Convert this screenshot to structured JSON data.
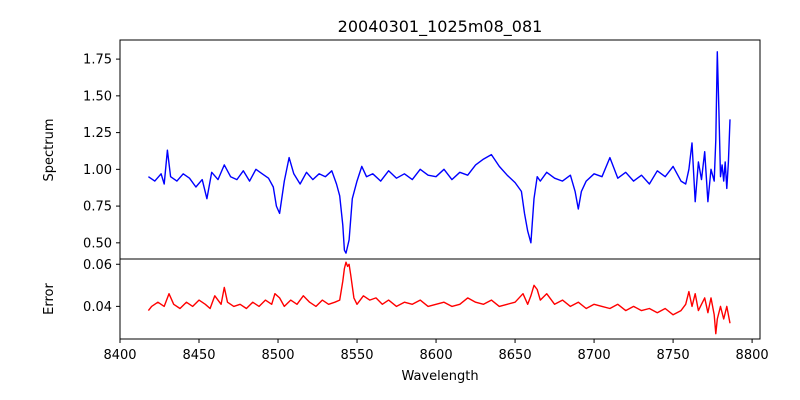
{
  "chart_data": [
    {
      "type": "line",
      "panel": "top",
      "title": "20040301_1025m08_081",
      "xlabel": "",
      "ylabel": "Spectrum",
      "xlim": [
        8400,
        8805
      ],
      "ylim": [
        0.39,
        1.88
      ],
      "xticks": [
        8400,
        8450,
        8500,
        8550,
        8600,
        8650,
        8700,
        8750,
        8800
      ],
      "yticks": [
        0.5,
        0.75,
        1.0,
        1.25,
        1.5,
        1.75
      ],
      "ytick_labels": [
        "0.50",
        "0.75",
        "1.00",
        "1.25",
        "1.50",
        "1.75"
      ],
      "series": [
        {
          "color": "#0000ff",
          "x": [
            8418,
            8422,
            8426,
            8428,
            8430,
            8432,
            8436,
            8440,
            8444,
            8448,
            8452,
            8455,
            8458,
            8462,
            8466,
            8470,
            8474,
            8478,
            8482,
            8486,
            8490,
            8494,
            8497,
            8499,
            8501,
            8504,
            8507,
            8510,
            8514,
            8518,
            8522,
            8526,
            8530,
            8534,
            8537,
            8539,
            8541,
            8542,
            8543,
            8545,
            8547,
            8550,
            8553,
            8556,
            8560,
            8565,
            8570,
            8575,
            8580,
            8585,
            8590,
            8595,
            8600,
            8605,
            8610,
            8615,
            8620,
            8625,
            8630,
            8635,
            8640,
            8645,
            8650,
            8654,
            8656,
            8658,
            8660,
            8662,
            8664,
            8666,
            8670,
            8675,
            8680,
            8685,
            8688,
            8690,
            8692,
            8695,
            8700,
            8705,
            8710,
            8715,
            8720,
            8725,
            8730,
            8735,
            8740,
            8745,
            8750,
            8755,
            8758,
            8760,
            8762,
            8764,
            8766,
            8768,
            8770,
            8772,
            8774,
            8776,
            8777,
            8778,
            8779,
            8780,
            8781,
            8782,
            8783,
            8784,
            8785,
            8786
          ],
          "y": [
            0.95,
            0.92,
            0.97,
            0.9,
            1.13,
            0.95,
            0.92,
            0.97,
            0.94,
            0.88,
            0.93,
            0.8,
            0.98,
            0.93,
            1.03,
            0.95,
            0.93,
            0.99,
            0.92,
            1.0,
            0.97,
            0.94,
            0.88,
            0.75,
            0.7,
            0.92,
            1.08,
            0.97,
            0.9,
            0.98,
            0.93,
            0.97,
            0.95,
            0.99,
            0.9,
            0.82,
            0.62,
            0.45,
            0.43,
            0.52,
            0.8,
            0.92,
            1.02,
            0.95,
            0.97,
            0.92,
            0.99,
            0.94,
            0.97,
            0.93,
            1.0,
            0.96,
            0.95,
            1.0,
            0.93,
            0.98,
            0.96,
            1.03,
            1.07,
            1.1,
            1.02,
            0.96,
            0.91,
            0.85,
            0.7,
            0.58,
            0.5,
            0.8,
            0.95,
            0.92,
            0.98,
            0.94,
            0.92,
            0.96,
            0.85,
            0.73,
            0.85,
            0.92,
            0.97,
            0.95,
            1.08,
            0.94,
            0.98,
            0.92,
            0.96,
            0.9,
            0.99,
            0.95,
            1.02,
            0.92,
            0.9,
            1.0,
            1.18,
            0.78,
            1.05,
            0.93,
            1.12,
            0.78,
            1.0,
            0.92,
            1.2,
            1.8,
            1.4,
            0.95,
            1.03,
            0.92,
            1.05,
            0.87,
            1.05,
            1.34
          ]
        }
      ]
    },
    {
      "type": "line",
      "panel": "bottom",
      "title": "",
      "xlabel": "Wavelength",
      "ylabel": "Error",
      "xlim": [
        8400,
        8805
      ],
      "ylim": [
        0.0245,
        0.0625
      ],
      "xticks": [
        8400,
        8450,
        8500,
        8550,
        8600,
        8650,
        8700,
        8750,
        8800
      ],
      "yticks": [
        0.04,
        0.06
      ],
      "ytick_labels": [
        "0.04",
        "0.06"
      ],
      "series": [
        {
          "color": "#ff0000",
          "x": [
            8418,
            8420,
            8424,
            8428,
            8431,
            8434,
            8438,
            8442,
            8446,
            8450,
            8454,
            8457,
            8460,
            8464,
            8466,
            8468,
            8472,
            8476,
            8480,
            8484,
            8488,
            8492,
            8496,
            8498,
            8501,
            8504,
            8508,
            8512,
            8516,
            8520,
            8524,
            8528,
            8532,
            8536,
            8539,
            8541,
            8542,
            8543,
            8544,
            8545,
            8546,
            8548,
            8550,
            8554,
            8558,
            8562,
            8566,
            8570,
            8575,
            8580,
            8585,
            8590,
            8595,
            8600,
            8605,
            8610,
            8615,
            8620,
            8625,
            8630,
            8635,
            8640,
            8645,
            8650,
            8655,
            8658,
            8660,
            8662,
            8664,
            8666,
            8670,
            8675,
            8680,
            8685,
            8690,
            8695,
            8700,
            8705,
            8710,
            8715,
            8720,
            8725,
            8730,
            8735,
            8740,
            8745,
            8750,
            8755,
            8758,
            8760,
            8762,
            8764,
            8766,
            8768,
            8770,
            8772,
            8774,
            8776,
            8777,
            8778,
            8780,
            8782,
            8784,
            8786
          ],
          "y": [
            0.038,
            0.04,
            0.042,
            0.04,
            0.046,
            0.041,
            0.039,
            0.042,
            0.04,
            0.043,
            0.041,
            0.039,
            0.045,
            0.041,
            0.049,
            0.042,
            0.04,
            0.041,
            0.039,
            0.042,
            0.04,
            0.043,
            0.041,
            0.046,
            0.044,
            0.04,
            0.043,
            0.041,
            0.045,
            0.042,
            0.04,
            0.043,
            0.041,
            0.042,
            0.043,
            0.052,
            0.058,
            0.061,
            0.059,
            0.06,
            0.055,
            0.044,
            0.041,
            0.045,
            0.043,
            0.044,
            0.041,
            0.043,
            0.04,
            0.042,
            0.041,
            0.043,
            0.04,
            0.041,
            0.042,
            0.04,
            0.041,
            0.044,
            0.042,
            0.041,
            0.043,
            0.04,
            0.041,
            0.042,
            0.046,
            0.041,
            0.045,
            0.05,
            0.048,
            0.043,
            0.046,
            0.041,
            0.043,
            0.04,
            0.042,
            0.039,
            0.041,
            0.04,
            0.039,
            0.041,
            0.038,
            0.04,
            0.038,
            0.039,
            0.037,
            0.039,
            0.036,
            0.038,
            0.041,
            0.047,
            0.04,
            0.046,
            0.038,
            0.041,
            0.044,
            0.037,
            0.044,
            0.036,
            0.027,
            0.034,
            0.04,
            0.034,
            0.04,
            0.032
          ]
        }
      ]
    }
  ]
}
